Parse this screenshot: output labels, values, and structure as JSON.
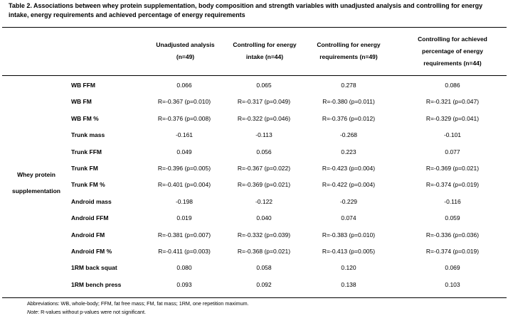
{
  "caption": "Table 2. Associations between whey protein supplementation, body composition and strength variables with unadjusted analysis and controlling for energy intake, energy requirements and achieved percentage of energy requirements",
  "columns": [
    "Unadjusted analysis (n=49)",
    "Controlling for energy intake (n=44)",
    "Controlling for energy requirements (n=49)",
    "Controlling for achieved percentage of energy requirements (n=44)"
  ],
  "group_label": "Whey protein supplementation",
  "rows": [
    {
      "label": "WB FFM",
      "values": [
        "0.066",
        "0.065",
        "0.278",
        "0.086"
      ]
    },
    {
      "label": "WB FM",
      "values": [
        "R=-0.367 (p=0.010)",
        "R=-0.317 (p=0.049)",
        "R=-0.380 (p=0.011)",
        "R=-0.321 (p=0.047)"
      ]
    },
    {
      "label": "WB FM %",
      "values": [
        "R=-0.376 (p=0.008)",
        "R=-0.322 (p=0.046)",
        "R=-0.376 (p=0.012)",
        "R=-0.329 (p=0.041)"
      ]
    },
    {
      "label": "Trunk mass",
      "values": [
        "-0.161",
        "-0.113",
        "-0.268",
        "-0.101"
      ]
    },
    {
      "label": "Trunk FFM",
      "values": [
        "0.049",
        "0.056",
        "0.223",
        "0.077"
      ]
    },
    {
      "label": "Trunk FM",
      "values": [
        "R=-0.396 (p=0.005)",
        "R=-0.367 (p=0.022)",
        "R=-0.423 (p=0.004)",
        "R=-0.369 (p=0.021)"
      ]
    },
    {
      "label": "Trunk FM %",
      "values": [
        "R=-0.401 (p=0.004)",
        "R=-0.369 (p=0.021)",
        "R=-0.422 (p=0.004)",
        "R=-0.374 (p=0.019)"
      ]
    },
    {
      "label": "Android mass",
      "values": [
        "-0.198",
        "-0.122",
        "-0.229",
        "-0.116"
      ]
    },
    {
      "label": "Android FFM",
      "values": [
        "0.019",
        "0.040",
        "0.074",
        "0.059"
      ]
    },
    {
      "label": "Android FM",
      "values": [
        "R=-0.381 (p=0.007)",
        "R=-0.332 (p=0.039)",
        "R=-0.383 (p=0.010)",
        "R=-0.336 (p=0.036)"
      ]
    },
    {
      "label": "Android FM %",
      "values": [
        "R=-0.411 (p=0.003)",
        "R=-0.368 (p=0.021)",
        "R=-0.413 (p=0.005)",
        "R=-0.374 (p=0.019)"
      ]
    },
    {
      "label": "1RM back squat",
      "values": [
        "0.080",
        "0.058",
        "0.120",
        "0.069"
      ]
    },
    {
      "label": "1RM bench press",
      "values": [
        "0.093",
        "0.092",
        "0.138",
        "0.103"
      ]
    }
  ],
  "footnotes": {
    "abbreviations": "Abbreviations: WB, whole-body; FFM, fat free mass; FM, fat mass; 1RM, one repetition maximum.",
    "note_label": "Note",
    "note_text": ": R-values without p-values were not significant."
  }
}
